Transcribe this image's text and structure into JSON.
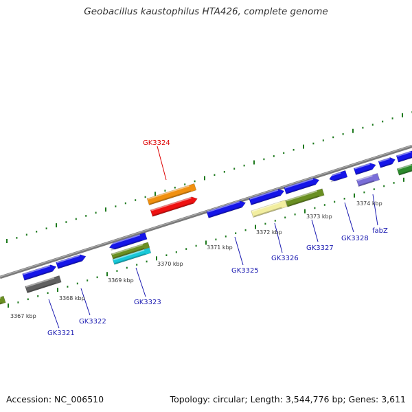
{
  "title": "Geobacillus kaustophilus HTA426, complete genome",
  "footer": {
    "accession": "Accession: NC_006510",
    "topology": "Topology: circular; Length: 3,544,776 bp; Genes: 3,611"
  },
  "colors": {
    "backbone": "#8a8a8a",
    "ticks": "#1e7a1e",
    "gene_label": "#1818b0",
    "highlight_label": "#dd0000"
  },
  "scale_labels": [
    "3367 kbp",
    "3368 kbp",
    "3369 kbp",
    "3370 kbp",
    "3371 kbp",
    "3372 kbp",
    "3373 kbp",
    "3374 kbp"
  ],
  "gene_labels": [
    "GK3324",
    "GK3321",
    "GK3322",
    "GK3323",
    "GK3325",
    "GK3326",
    "GK3327",
    "GK3328",
    "fabZ"
  ],
  "highlighted_gene": "GK3324"
}
